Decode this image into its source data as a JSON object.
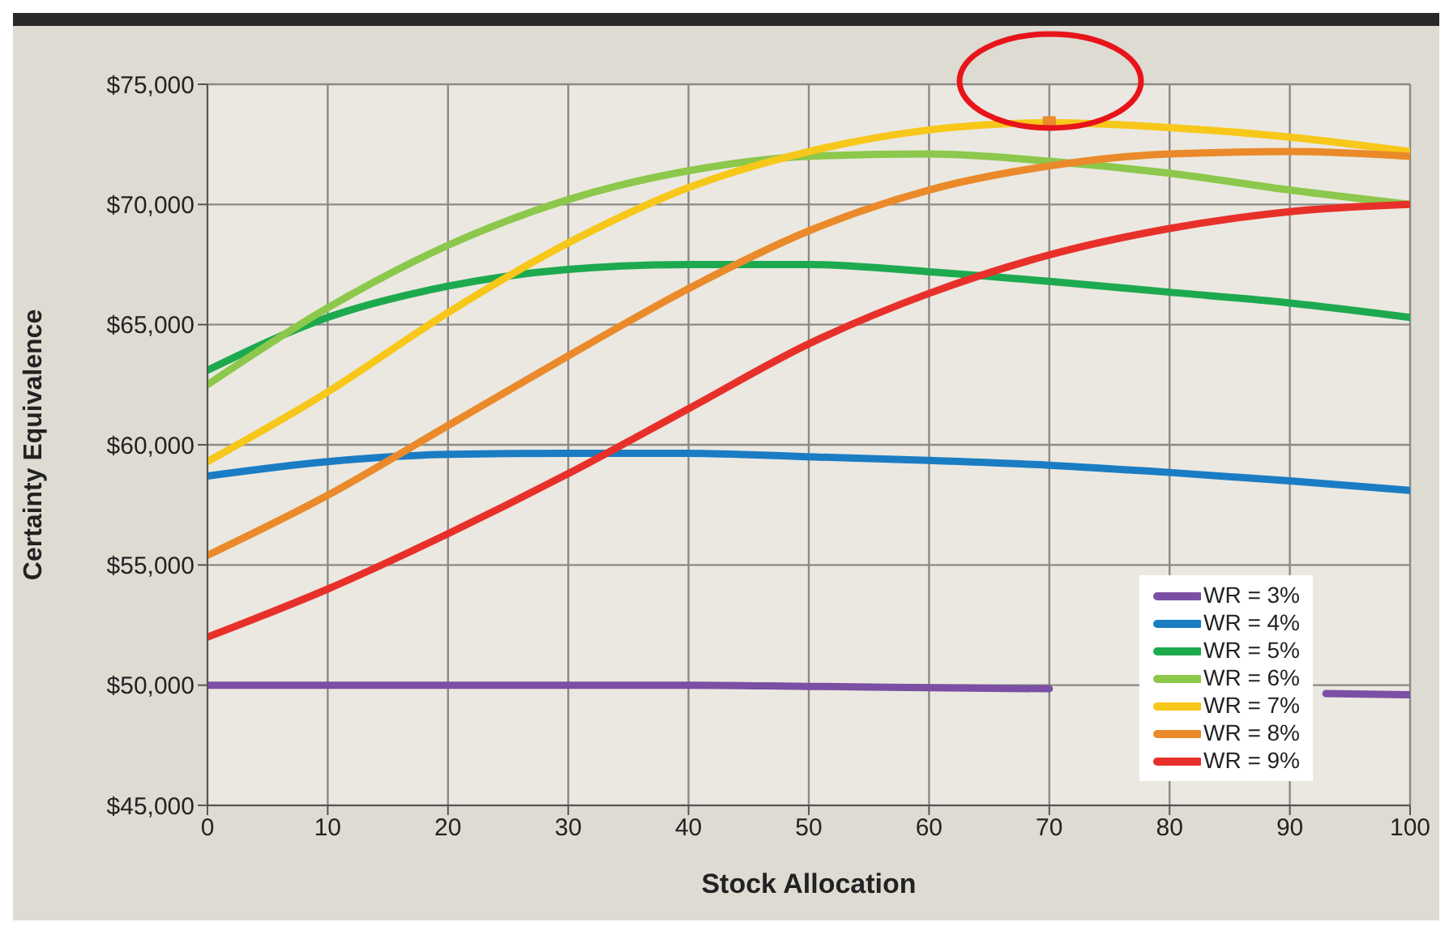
{
  "chart_data": {
    "type": "line",
    "xlabel": "Stock Allocation",
    "ylabel": "Certainty Equivalence",
    "x": [
      0,
      10,
      20,
      30,
      40,
      50,
      60,
      70,
      80,
      90,
      100
    ],
    "xlim": [
      0,
      100
    ],
    "xticks": [
      0,
      10,
      20,
      30,
      40,
      50,
      60,
      70,
      80,
      90,
      100
    ],
    "ylim": [
      45000,
      75000
    ],
    "yticks": [
      {
        "value": 45000,
        "label": "$45,000"
      },
      {
        "value": 50000,
        "label": "$50,000"
      },
      {
        "value": 55000,
        "label": "$55,000"
      },
      {
        "value": 60000,
        "label": "$60,000"
      },
      {
        "value": 65000,
        "label": "$65,000"
      },
      {
        "value": 70000,
        "label": "$70,000"
      },
      {
        "value": 75000,
        "label": "$75,000"
      }
    ],
    "grid": true,
    "legend": "bottom right",
    "marker": "none",
    "line_style": "solid",
    "series": [
      {
        "name": "WR = 3%",
        "color": "#7b4fa3",
        "x": [
          0,
          10,
          20,
          30,
          40,
          50,
          60,
          70,
          80,
          93,
          100
        ],
        "values": [
          50000,
          50000,
          50000,
          50000,
          50000,
          49950,
          49900,
          49850,
          null,
          49650,
          49600
        ]
      },
      {
        "name": "WR = 4%",
        "color": "#1a7dc4",
        "values": [
          58700,
          59300,
          59600,
          59650,
          59650,
          59500,
          59350,
          59150,
          58850,
          58500,
          58100
        ]
      },
      {
        "name": "WR = 5%",
        "color": "#1daa4f",
        "values": [
          63100,
          65300,
          66600,
          67300,
          67500,
          67500,
          67200,
          66800,
          66350,
          65900,
          65300
        ]
      },
      {
        "name": "WR = 6%",
        "color": "#8cc84b",
        "values": [
          62500,
          65700,
          68300,
          70200,
          71400,
          72000,
          72100,
          71800,
          71300,
          70600,
          70000
        ]
      },
      {
        "name": "WR = 7%",
        "color": "#f7c71a",
        "values": [
          59300,
          62200,
          65500,
          68400,
          70700,
          72200,
          73100,
          73400,
          73200,
          72800,
          72200
        ]
      },
      {
        "name": "WR = 8%",
        "color": "#ea8a2a",
        "values": [
          55400,
          57900,
          60800,
          63700,
          66500,
          68900,
          70600,
          71600,
          72100,
          72200,
          72000
        ]
      },
      {
        "name": "WR = 9%",
        "color": "#e8302a",
        "values": [
          52000,
          54000,
          56300,
          58800,
          61500,
          64200,
          66300,
          67900,
          69000,
          69700,
          70000
        ]
      },
      {
        "type": "scatter",
        "color": "#ea8a2a",
        "marker": "square",
        "x": [
          70
        ],
        "values": [
          73400
        ]
      }
    ]
  }
}
